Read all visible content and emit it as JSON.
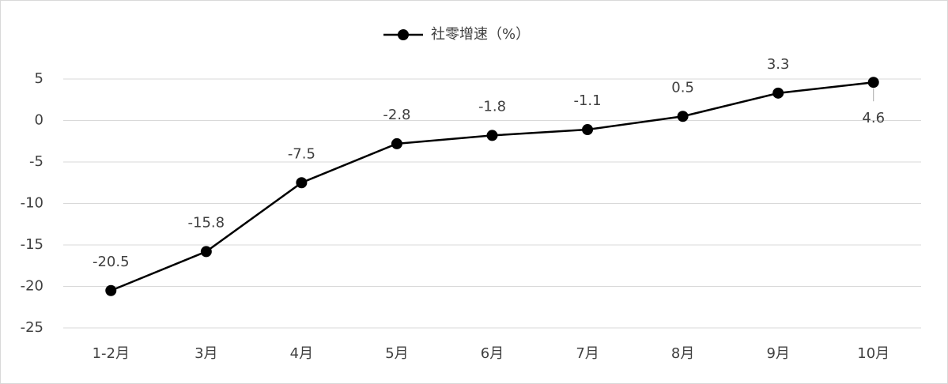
{
  "chart_data": {
    "type": "line",
    "categories": [
      "1-2月",
      "3月",
      "4月",
      "5月",
      "6月",
      "7月",
      "8月",
      "9月",
      "10月"
    ],
    "series": [
      {
        "name": "社零增速（%）",
        "color": "#000000",
        "values": [
          -20.5,
          -15.8,
          -7.5,
          -2.8,
          -1.8,
          -1.1,
          0.5,
          3.3,
          4.6
        ]
      }
    ],
    "ylim": [
      -25,
      5
    ],
    "yticks": [
      -25,
      -20,
      -15,
      -10,
      -5,
      0,
      5
    ],
    "grid": true,
    "legend": "top"
  }
}
